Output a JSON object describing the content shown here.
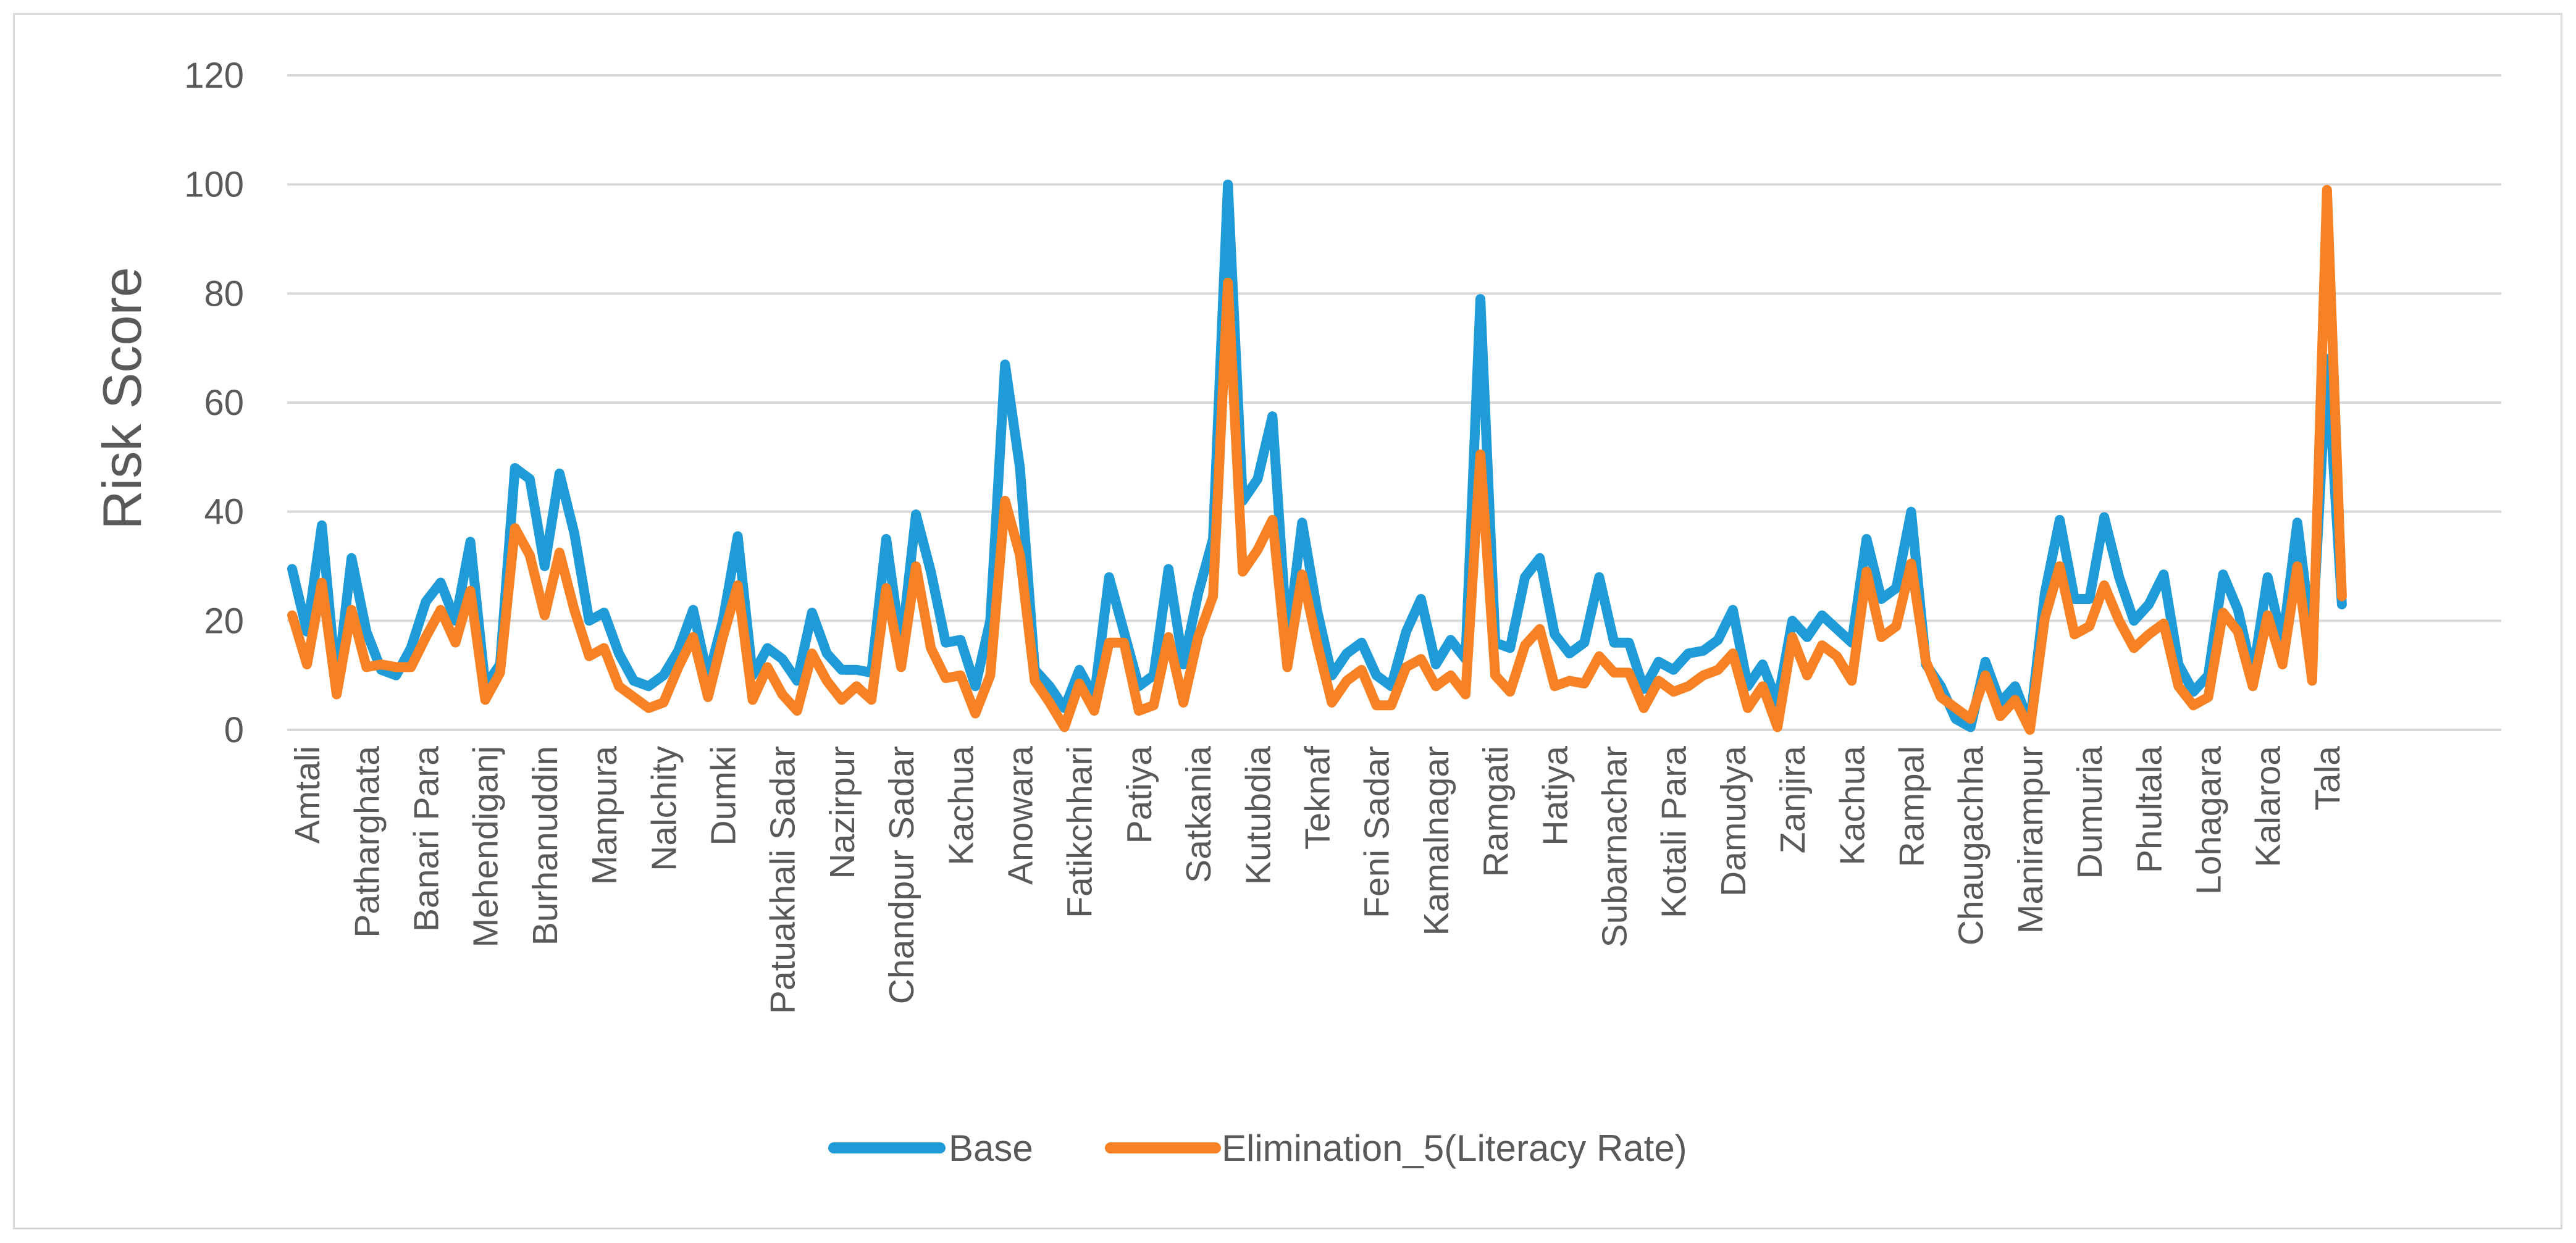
{
  "chart_data": {
    "type": "line",
    "title": "",
    "xlabel": "",
    "ylabel": "Risk Score",
    "ylim": [
      0,
      120
    ],
    "yticks": [
      "0",
      "20",
      "40",
      "60",
      "80",
      "100",
      "120"
    ],
    "grid": true,
    "legend_position": "bottom-center",
    "x_tick_labels": [
      {
        "index": 1,
        "label": "Amtali"
      },
      {
        "index": 5,
        "label": "Patharghata"
      },
      {
        "index": 9,
        "label": "Banari Para"
      },
      {
        "index": 13,
        "label": "Mehendiganj"
      },
      {
        "index": 17,
        "label": "Burhanuddin"
      },
      {
        "index": 21,
        "label": "Manpura"
      },
      {
        "index": 25,
        "label": "Nalchity"
      },
      {
        "index": 29,
        "label": "Dumki"
      },
      {
        "index": 33,
        "label": "Patuakhali Sadar"
      },
      {
        "index": 37,
        "label": "Nazirpur"
      },
      {
        "index": 41,
        "label": "Chandpur Sadar"
      },
      {
        "index": 45,
        "label": "Kachua"
      },
      {
        "index": 49,
        "label": "Anowara"
      },
      {
        "index": 53,
        "label": "Fatikchhari"
      },
      {
        "index": 57,
        "label": "Patiya"
      },
      {
        "index": 61,
        "label": "Satkania"
      },
      {
        "index": 65,
        "label": "Kutubdia"
      },
      {
        "index": 69,
        "label": "Teknaf"
      },
      {
        "index": 73,
        "label": "Feni Sadar"
      },
      {
        "index": 77,
        "label": "Kamalnagar"
      },
      {
        "index": 81,
        "label": "Ramgati"
      },
      {
        "index": 85,
        "label": "Hatiya"
      },
      {
        "index": 89,
        "label": "Subarnachar"
      },
      {
        "index": 93,
        "label": "Kotali Para"
      },
      {
        "index": 97,
        "label": "Damudya"
      },
      {
        "index": 101,
        "label": "Zanjira"
      },
      {
        "index": 105,
        "label": "Kachua"
      },
      {
        "index": 109,
        "label": "Rampal"
      },
      {
        "index": 113,
        "label": "Chaugachha"
      },
      {
        "index": 117,
        "label": "Manirampur"
      },
      {
        "index": 121,
        "label": "Dumuria"
      },
      {
        "index": 125,
        "label": "Phultala"
      },
      {
        "index": 129,
        "label": "Lohagara"
      },
      {
        "index": 133,
        "label": "Kalaroa"
      },
      {
        "index": 137,
        "label": "Tala"
      }
    ],
    "series": [
      {
        "name": "Base",
        "color": "#1f9bd7",
        "values": [
          29.5,
          18,
          37.5,
          8,
          31.5,
          18,
          11,
          10,
          15,
          23.5,
          27,
          20,
          34.5,
          8,
          12,
          48,
          46,
          30,
          47,
          36,
          20,
          21.5,
          14,
          9,
          8,
          10,
          14.5,
          22,
          9.5,
          20,
          35.5,
          10,
          15,
          13,
          9,
          21.5,
          14,
          11,
          11,
          10.5,
          35,
          15,
          39.5,
          29,
          16,
          16.5,
          8,
          20,
          67,
          48,
          11,
          8,
          4,
          11,
          6,
          28,
          18,
          8,
          10,
          29.5,
          12,
          25,
          35,
          100,
          42,
          46,
          57.5,
          16,
          38,
          22,
          10,
          14,
          16,
          10,
          8,
          18,
          24,
          12,
          16.5,
          13,
          79,
          16,
          15,
          28,
          31.5,
          17.5,
          14,
          16,
          28,
          16,
          16,
          7.5,
          12.5,
          11,
          14,
          14.5,
          16.5,
          22,
          8,
          12,
          5,
          20,
          17,
          21,
          18.5,
          16,
          35,
          24,
          26,
          40,
          12,
          8,
          2,
          0.5,
          12.5,
          5,
          8,
          1,
          25,
          38.5,
          24,
          24,
          39,
          28,
          20,
          23,
          28.5,
          12,
          7,
          10,
          28.5,
          22,
          10,
          28,
          16,
          38,
          16,
          68,
          23
        ]
      },
      {
        "name": "Elimination_5(Literacy Rate)",
        "color": "#f68225",
        "values": [
          21,
          12,
          27,
          6.5,
          22,
          11.5,
          12,
          11.5,
          11.5,
          17,
          22,
          16,
          25.5,
          5.5,
          10.5,
          37,
          32,
          21,
          32.5,
          22,
          13.5,
          15,
          8,
          6,
          4,
          5,
          11.5,
          17,
          6,
          17,
          26.5,
          5.5,
          11.5,
          6.5,
          3.5,
          14,
          9,
          5.5,
          8,
          5.5,
          26,
          11.5,
          30,
          15,
          9.5,
          10,
          3,
          10,
          42,
          32,
          9,
          5,
          0.5,
          8.5,
          3.5,
          16,
          16,
          3.5,
          4.5,
          17,
          5,
          17,
          24.5,
          82,
          29,
          33,
          38.5,
          11.5,
          28.5,
          16,
          5,
          9,
          11,
          4.5,
          4.5,
          11.5,
          13,
          8,
          10,
          6.5,
          50.5,
          10,
          7,
          15.5,
          18.5,
          8,
          9,
          8.5,
          13.5,
          10.5,
          10.5,
          4,
          9,
          7,
          8,
          10,
          11,
          14,
          4,
          8,
          0.5,
          17,
          10,
          15.5,
          13.5,
          9,
          29,
          17,
          19,
          30.5,
          12.5,
          6,
          4,
          2,
          10,
          2.5,
          5.5,
          0,
          20.5,
          30,
          17.5,
          19,
          26.5,
          20,
          15,
          17.5,
          19.5,
          8,
          4.5,
          6,
          21.5,
          18,
          8,
          21,
          12,
          30,
          9,
          99,
          24.5
        ]
      }
    ]
  }
}
